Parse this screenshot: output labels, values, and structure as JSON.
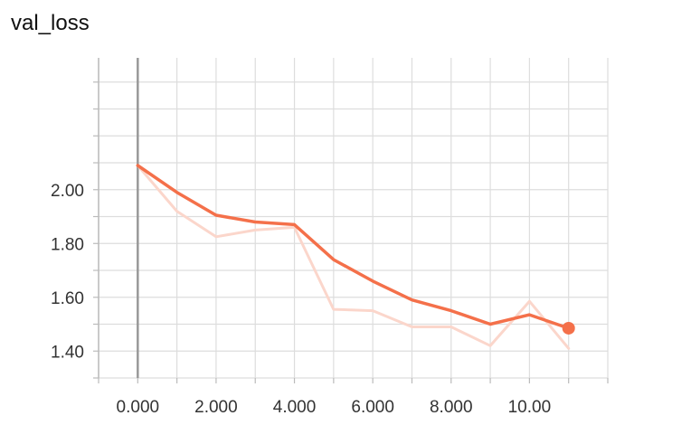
{
  "chart_data": {
    "type": "line",
    "title": "val_loss",
    "xlabel": "",
    "ylabel": "",
    "xlim": [
      -1.0,
      12.0
    ],
    "ylim": [
      1.3,
      2.49
    ],
    "x_ticks": [
      0,
      2,
      4,
      6,
      8,
      10
    ],
    "x_tick_labels": [
      "0.000",
      "2.000",
      "4.000",
      "6.000",
      "8.000",
      "10.00"
    ],
    "y_ticks": [
      1.4,
      1.6,
      1.8,
      2.0
    ],
    "y_tick_labels": [
      "1.40",
      "1.60",
      "1.80",
      "2.00"
    ],
    "grid": true,
    "series": [
      {
        "role": "raw",
        "color": "#fbd6cb",
        "x": [
          0,
          1,
          2,
          3,
          4,
          5,
          6,
          7,
          8,
          9,
          10,
          11
        ],
        "values": [
          2.09,
          1.92,
          1.825,
          1.85,
          1.86,
          1.555,
          1.55,
          1.49,
          1.49,
          1.42,
          1.585,
          1.41
        ]
      },
      {
        "role": "smoothed",
        "color": "#f4704a",
        "x": [
          0,
          1,
          2,
          3,
          4,
          5,
          6,
          7,
          8,
          9,
          10,
          11
        ],
        "values": [
          2.09,
          1.99,
          1.905,
          1.88,
          1.87,
          1.74,
          1.66,
          1.59,
          1.55,
          1.5,
          1.535,
          1.485
        ]
      }
    ],
    "last_point_marker": {
      "x": 11,
      "y": 1.485,
      "color": "#f4704a"
    },
    "zero_line_color": "#999999",
    "grid_color": "#dddddd"
  }
}
